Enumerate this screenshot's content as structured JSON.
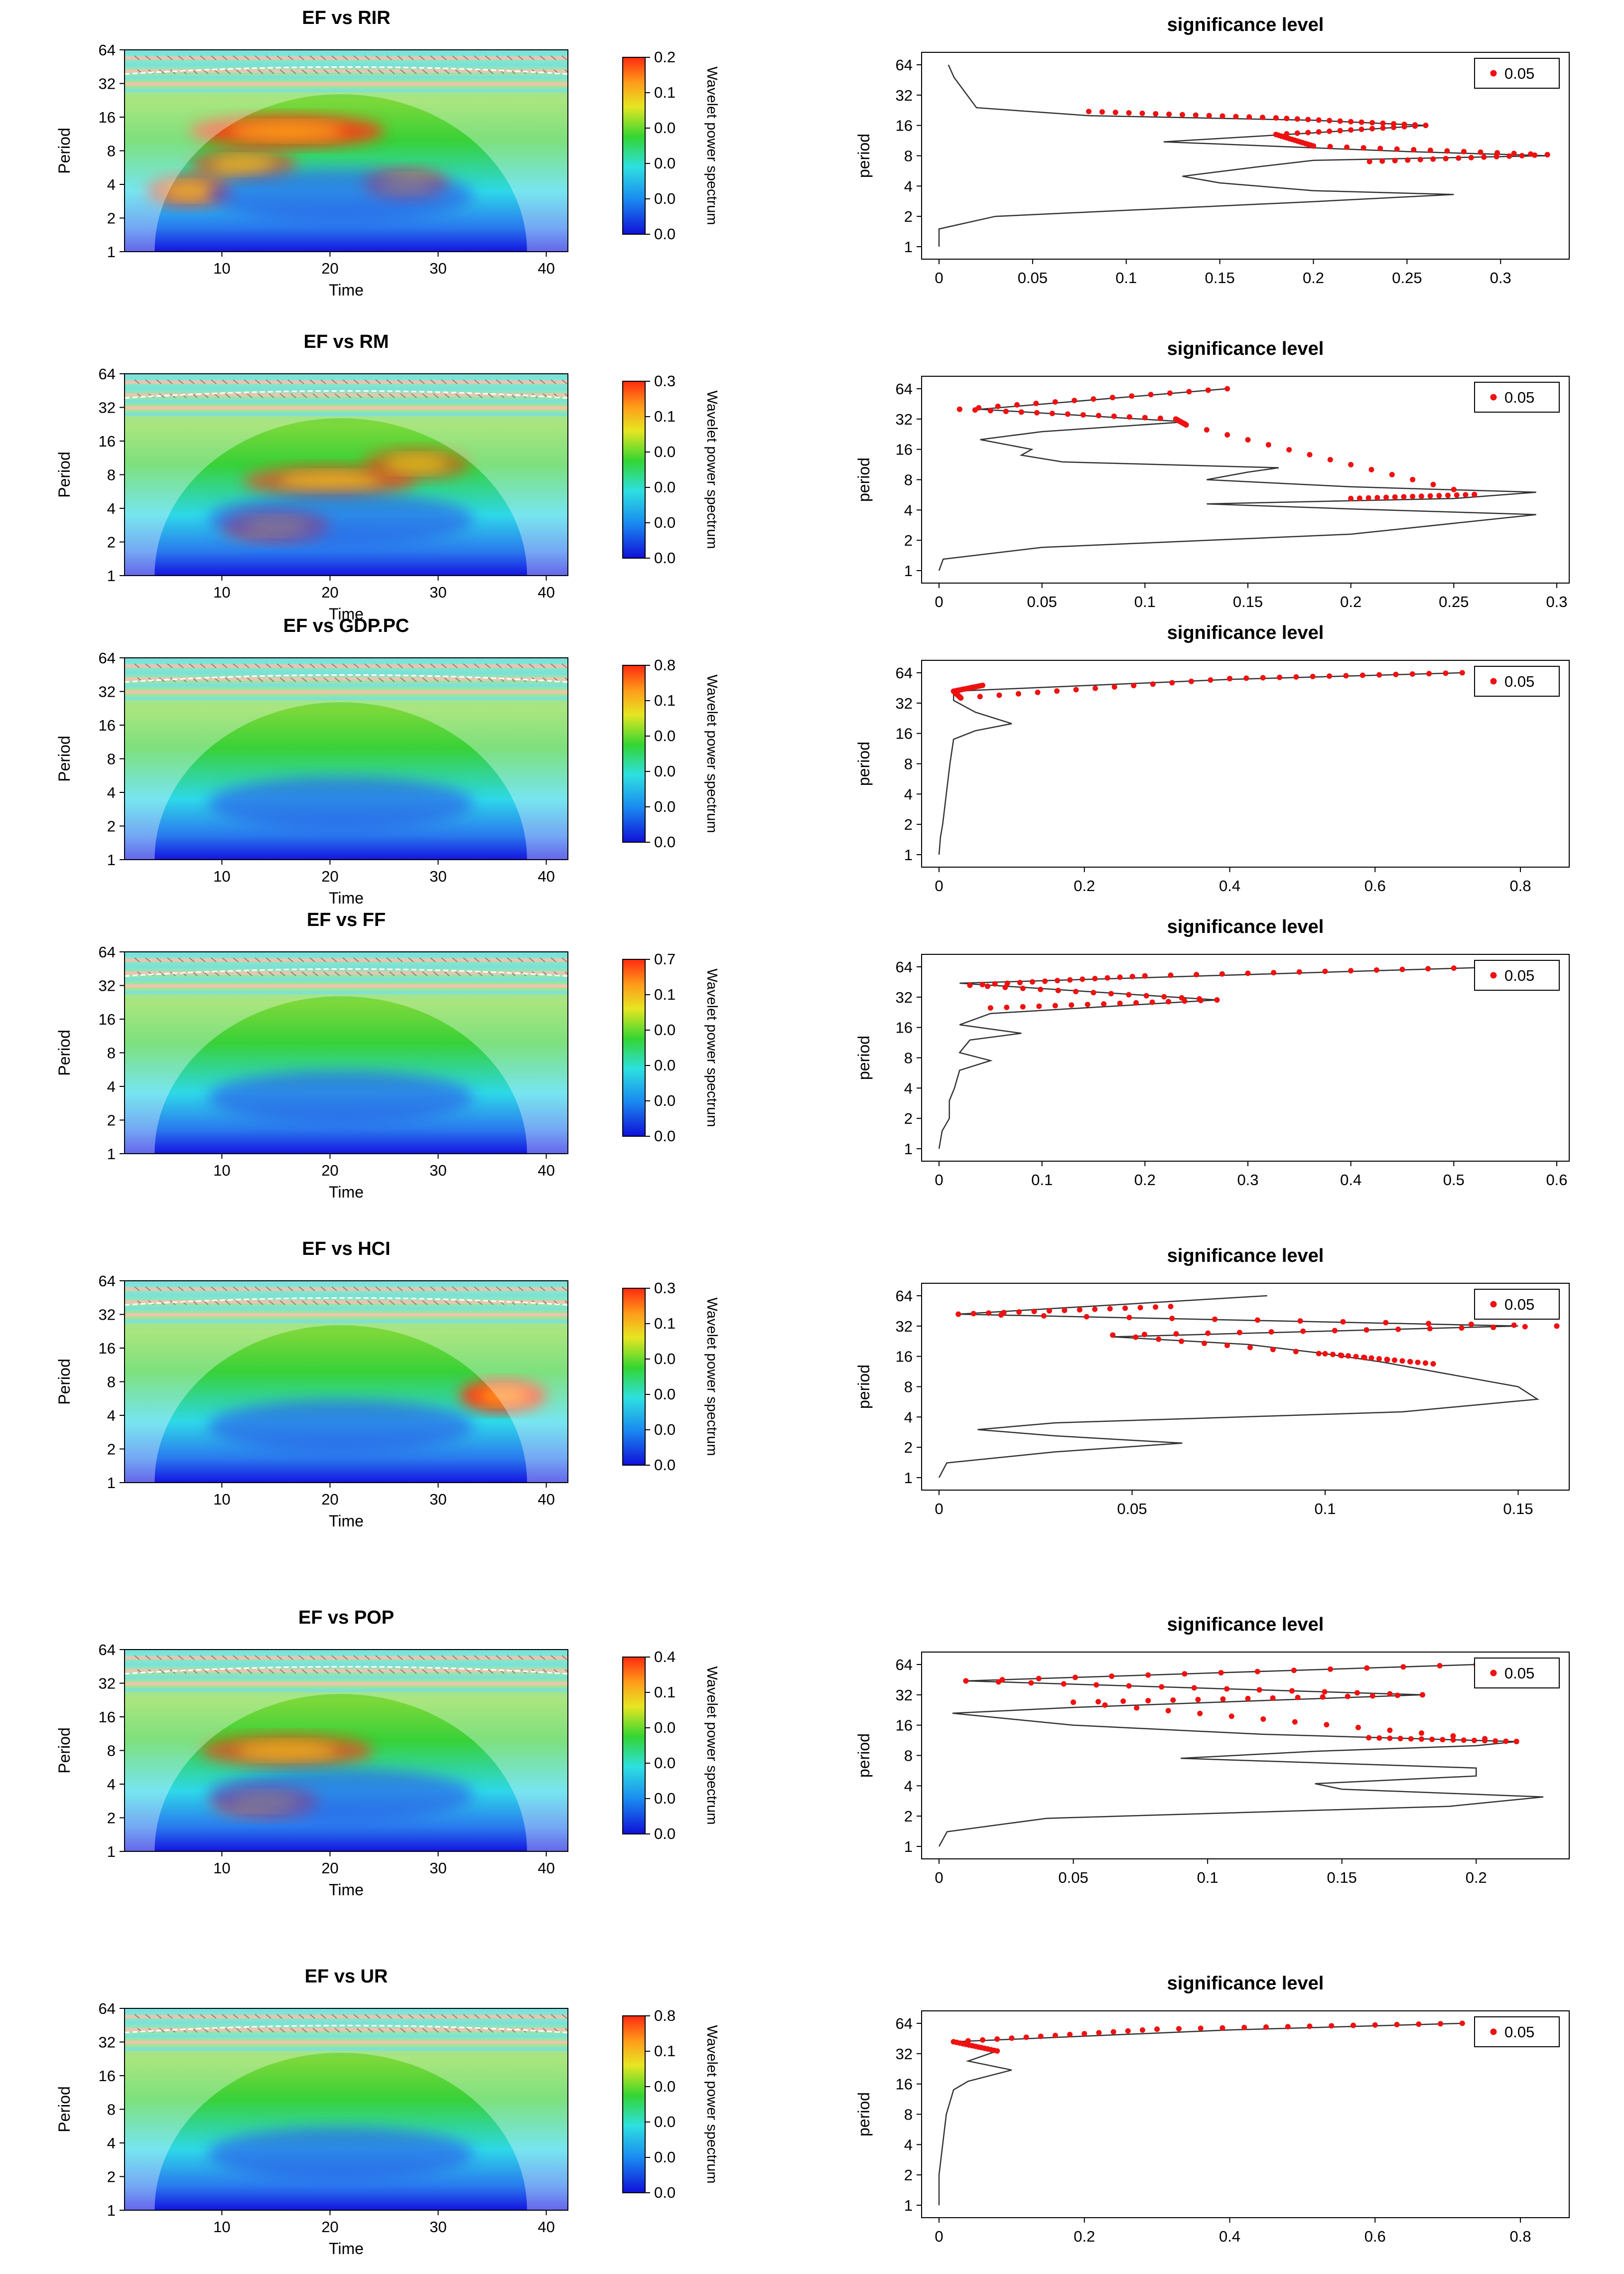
{
  "figure": {
    "description_free": true,
    "wavelet_panels": [
      {
        "title": "EF vs RIR",
        "xlabel": "Time",
        "ylabel": "Period",
        "colorbar_label": "Wavelet power spectrum",
        "colorbar_ticks": [
          "0.2",
          "0.1",
          "0.0",
          "0.0",
          "0.0",
          "0.0"
        ]
      },
      {
        "title": "EF vs RM",
        "xlabel": "Time",
        "ylabel": "Period",
        "colorbar_label": "Wavelet power spectrum",
        "colorbar_ticks": [
          "0.3",
          "0.1",
          "0.0",
          "0.0",
          "0.0",
          "0.0"
        ]
      },
      {
        "title": "EF vs GDP.PC",
        "xlabel": "Time",
        "ylabel": "Period",
        "colorbar_label": "Wavelet power spectrum",
        "colorbar_ticks": [
          "0.8",
          "0.1",
          "0.0",
          "0.0",
          "0.0",
          "0.0"
        ]
      },
      {
        "title": "EF vs FF",
        "xlabel": "Time",
        "ylabel": "Period",
        "colorbar_label": "Wavelet power spectrum",
        "colorbar_ticks": [
          "0.7",
          "0.1",
          "0.0",
          "0.0",
          "0.0",
          "0.0"
        ]
      },
      {
        "title": "EF vs HCI",
        "xlabel": "Time",
        "ylabel": "Period",
        "colorbar_label": "Wavelet power spectrum",
        "colorbar_ticks": [
          "0.3",
          "0.1",
          "0.0",
          "0.0",
          "0.0",
          "0.0"
        ]
      },
      {
        "title": "EF vs POP",
        "xlabel": "Time",
        "ylabel": "Period",
        "colorbar_label": "Wavelet power spectrum",
        "colorbar_ticks": [
          "0.4",
          "0.1",
          "0.0",
          "0.0",
          "0.0",
          "0.0"
        ]
      },
      {
        "title": "EF vs UR",
        "xlabel": "Time",
        "ylabel": "Period",
        "colorbar_label": "Wavelet power spectrum",
        "colorbar_ticks": [
          "0.8",
          "0.1",
          "0.0",
          "0.0",
          "0.0",
          "0.0"
        ]
      }
    ],
    "x_ticks": [
      "10",
      "20",
      "30",
      "40"
    ],
    "y_ticks": [
      "1",
      "2",
      "4",
      "8",
      "16",
      "32",
      "64"
    ]
  },
  "chart_data": [
    {
      "type": "heatmap",
      "title": "EF vs RIR",
      "xlabel": "Time",
      "ylabel": "Period",
      "xlim": [
        1,
        42
      ],
      "period_range": [
        1,
        64
      ],
      "hot": [
        {
          "t": 16,
          "p": 12,
          "w": 9,
          "h": 0.7
        },
        {
          "t": 7,
          "p": 3.5,
          "w": 4,
          "h": 0.5
        },
        {
          "t": 27,
          "p": 4,
          "w": 4,
          "h": 0.4
        },
        {
          "t": 12,
          "p": 6,
          "w": 5,
          "h": 0.4
        }
      ]
    },
    {
      "type": "line",
      "title": "significance level",
      "xlabel": "",
      "ylabel": "period",
      "xlim": [
        0,
        0.33
      ],
      "xticks": [
        0,
        0.05,
        0.1,
        0.15,
        0.2,
        0.25,
        0.3
      ],
      "legend": "0.05",
      "curve": [
        [
          0,
          1
        ],
        [
          0,
          1.5
        ],
        [
          0.03,
          2
        ],
        [
          0.2,
          2.8
        ],
        [
          0.275,
          3.3
        ],
        [
          0.2,
          3.6
        ],
        [
          0.15,
          4.3
        ],
        [
          0.13,
          5
        ],
        [
          0.17,
          6.2
        ],
        [
          0.2,
          7.2
        ],
        [
          0.325,
          8
        ],
        [
          0.25,
          8.8
        ],
        [
          0.12,
          11
        ],
        [
          0.2,
          13.5
        ],
        [
          0.26,
          16
        ],
        [
          0.2,
          18
        ],
        [
          0.08,
          20
        ],
        [
          0.02,
          24
        ],
        [
          0.015,
          32
        ],
        [
          0.008,
          48
        ],
        [
          0.005,
          64
        ]
      ],
      "sig": [
        [
          0.08,
          22
        ],
        [
          0.18,
          19
        ],
        [
          0.26,
          16
        ],
        [
          0.18,
          13
        ],
        [
          0.2,
          10
        ],
        [
          0.325,
          8.2
        ],
        [
          0.23,
          7
        ]
      ]
    },
    {
      "type": "heatmap",
      "title": "EF vs RM",
      "xlabel": "Time",
      "ylabel": "Period",
      "xlim": [
        1,
        42
      ],
      "period_range": [
        1,
        64
      ],
      "hot": [
        {
          "t": 15,
          "p": 2.8,
          "w": 5,
          "h": 0.45
        },
        {
          "t": 20,
          "p": 7,
          "w": 8,
          "h": 0.45
        },
        {
          "t": 28,
          "p": 10,
          "w": 5,
          "h": 0.35
        }
      ]
    },
    {
      "type": "line",
      "title": "significance level",
      "xlabel": "",
      "ylabel": "period",
      "xlim": [
        0,
        0.3
      ],
      "xticks": [
        0,
        0.05,
        0.1,
        0.15,
        0.2,
        0.25,
        0.3
      ],
      "legend": "0.05",
      "curve": [
        [
          0,
          1
        ],
        [
          0.002,
          1.3
        ],
        [
          0.05,
          1.7
        ],
        [
          0.2,
          2.3
        ],
        [
          0.29,
          3.6
        ],
        [
          0.2,
          4.1
        ],
        [
          0.13,
          4.6
        ],
        [
          0.25,
          5.2
        ],
        [
          0.29,
          6
        ],
        [
          0.2,
          6.8
        ],
        [
          0.13,
          8
        ],
        [
          0.15,
          9.5
        ],
        [
          0.165,
          10.5
        ],
        [
          0.06,
          12
        ],
        [
          0.04,
          14
        ],
        [
          0.045,
          16
        ],
        [
          0.02,
          20
        ],
        [
          0.05,
          24
        ],
        [
          0.12,
          30
        ],
        [
          0.02,
          40
        ],
        [
          0.14,
          64
        ]
      ],
      "sig": [
        [
          0.2,
          5.2
        ],
        [
          0.26,
          5.7
        ],
        [
          0.12,
          28
        ],
        [
          0.115,
          32
        ],
        [
          0.01,
          40
        ],
        [
          0.14,
          64
        ]
      ]
    },
    {
      "type": "heatmap",
      "title": "EF vs GDP.PC",
      "xlabel": "Time",
      "ylabel": "Period",
      "xlim": [
        1,
        42
      ],
      "period_range": [
        1,
        64
      ],
      "hot": []
    },
    {
      "type": "line",
      "title": "significance level",
      "xlabel": "",
      "ylabel": "period",
      "xlim": [
        0,
        0.85
      ],
      "xticks": [
        0,
        0.2,
        0.4,
        0.6,
        0.8
      ],
      "legend": "0.05",
      "curve": [
        [
          0,
          1
        ],
        [
          0.002,
          1.5
        ],
        [
          0.005,
          2
        ],
        [
          0.01,
          4
        ],
        [
          0.015,
          8
        ],
        [
          0.02,
          14
        ],
        [
          0.05,
          17
        ],
        [
          0.1,
          20
        ],
        [
          0.05,
          26
        ],
        [
          0.02,
          34
        ],
        [
          0.02,
          42
        ],
        [
          0.4,
          55
        ],
        [
          0.72,
          64
        ]
      ],
      "sig": [
        [
          0.06,
          48
        ],
        [
          0.02,
          42
        ],
        [
          0.03,
          36
        ],
        [
          0.4,
          56
        ],
        [
          0.72,
          64
        ]
      ]
    },
    {
      "type": "heatmap",
      "title": "EF vs FF",
      "xlabel": "Time",
      "ylabel": "Period",
      "xlim": [
        1,
        42
      ],
      "period_range": [
        1,
        64
      ],
      "hot": []
    },
    {
      "type": "line",
      "title": "significance level",
      "xlabel": "",
      "ylabel": "period",
      "xlim": [
        0,
        0.6
      ],
      "xticks": [
        0,
        0.1,
        0.2,
        0.3,
        0.4,
        0.5,
        0.6
      ],
      "legend": "0.05",
      "curve": [
        [
          0,
          1
        ],
        [
          0.003,
          1.5
        ],
        [
          0.01,
          2
        ],
        [
          0.01,
          3
        ],
        [
          0.015,
          4
        ],
        [
          0.02,
          6
        ],
        [
          0.05,
          7.5
        ],
        [
          0.02,
          9
        ],
        [
          0.03,
          12
        ],
        [
          0.08,
          14
        ],
        [
          0.02,
          17
        ],
        [
          0.05,
          22
        ],
        [
          0.27,
          30
        ],
        [
          0.02,
          44
        ],
        [
          0.55,
          64
        ]
      ],
      "sig": [
        [
          0.05,
          25
        ],
        [
          0.27,
          30
        ],
        [
          0.03,
          42
        ],
        [
          0.2,
          52
        ],
        [
          0.55,
          64
        ]
      ]
    },
    {
      "type": "heatmap",
      "title": "EF vs HCI",
      "xlabel": "Time",
      "ylabel": "Period",
      "xlim": [
        1,
        42
      ],
      "period_range": [
        1,
        64
      ],
      "hot": [
        {
          "t": 36,
          "p": 6,
          "w": 4,
          "h": 0.8
        }
      ]
    },
    {
      "type": "line",
      "title": "significance level",
      "xlabel": "",
      "ylabel": "period",
      "xlim": [
        0,
        0.16
      ],
      "xticks": [
        0,
        0.05,
        0.1,
        0.15
      ],
      "legend": "0.05",
      "curve": [
        [
          0,
          1
        ],
        [
          0.002,
          1.4
        ],
        [
          0.03,
          1.8
        ],
        [
          0.063,
          2.2
        ],
        [
          0.03,
          2.6
        ],
        [
          0.01,
          3
        ],
        [
          0.03,
          3.5
        ],
        [
          0.12,
          4.5
        ],
        [
          0.155,
          6
        ],
        [
          0.15,
          8
        ],
        [
          0.13,
          11
        ],
        [
          0.115,
          14
        ],
        [
          0.1,
          17
        ],
        [
          0.08,
          21
        ],
        [
          0.045,
          25
        ],
        [
          0.15,
          32
        ],
        [
          0.005,
          42
        ],
        [
          0.085,
          64
        ]
      ],
      "sig": [
        [
          0.1,
          17
        ],
        [
          0.128,
          13.5
        ],
        [
          0.045,
          26
        ],
        [
          0.16,
          32
        ],
        [
          0.005,
          42
        ],
        [
          0.06,
          50
        ]
      ]
    },
    {
      "type": "heatmap",
      "title": "EF vs POP",
      "xlabel": "Time",
      "ylabel": "Period",
      "xlim": [
        1,
        42
      ],
      "period_range": [
        1,
        64
      ],
      "hot": [
        {
          "t": 14,
          "p": 2.8,
          "w": 5,
          "h": 0.4
        },
        {
          "t": 16,
          "p": 8,
          "w": 8,
          "h": 0.5
        }
      ]
    },
    {
      "type": "line",
      "title": "significance level",
      "xlabel": "",
      "ylabel": "period",
      "xlim": [
        0,
        0.23
      ],
      "xticks": [
        0,
        0.05,
        0.1,
        0.15,
        0.2
      ],
      "legend": "0.05",
      "curve": [
        [
          0,
          1
        ],
        [
          0.003,
          1.4
        ],
        [
          0.04,
          1.9
        ],
        [
          0.19,
          2.5
        ],
        [
          0.225,
          3.1
        ],
        [
          0.15,
          3.7
        ],
        [
          0.14,
          4.2
        ],
        [
          0.2,
          5
        ],
        [
          0.2,
          6
        ],
        [
          0.09,
          7.5
        ],
        [
          0.14,
          8.8
        ],
        [
          0.2,
          10
        ],
        [
          0.215,
          11
        ],
        [
          0.12,
          13
        ],
        [
          0.05,
          16
        ],
        [
          0.005,
          21
        ],
        [
          0.05,
          24
        ],
        [
          0.18,
          32
        ],
        [
          0.01,
          44
        ],
        [
          0.2,
          64
        ]
      ],
      "sig": [
        [
          0.16,
          12
        ],
        [
          0.215,
          11
        ],
        [
          0.05,
          27
        ],
        [
          0.18,
          32
        ],
        [
          0.01,
          44
        ],
        [
          0.2,
          64
        ]
      ]
    },
    {
      "type": "heatmap",
      "title": "EF vs UR",
      "xlabel": "Time",
      "ylabel": "Period",
      "xlim": [
        1,
        42
      ],
      "period_range": [
        1,
        64
      ],
      "hot": []
    },
    {
      "type": "line",
      "title": "significance level",
      "xlabel": "",
      "ylabel": "period",
      "xlim": [
        0,
        0.85
      ],
      "xticks": [
        0,
        0.2,
        0.4,
        0.6,
        0.8
      ],
      "legend": "0.05",
      "curve": [
        [
          0,
          1
        ],
        [
          0,
          2
        ],
        [
          0.005,
          4
        ],
        [
          0.01,
          8
        ],
        [
          0.02,
          14
        ],
        [
          0.04,
          17
        ],
        [
          0.1,
          22
        ],
        [
          0.04,
          27
        ],
        [
          0.08,
          34
        ],
        [
          0.02,
          42
        ],
        [
          0.4,
          55
        ],
        [
          0.72,
          64
        ]
      ],
      "sig": [
        [
          0.08,
          34
        ],
        [
          0.02,
          42
        ],
        [
          0.3,
          56
        ],
        [
          0.72,
          64
        ]
      ]
    }
  ]
}
